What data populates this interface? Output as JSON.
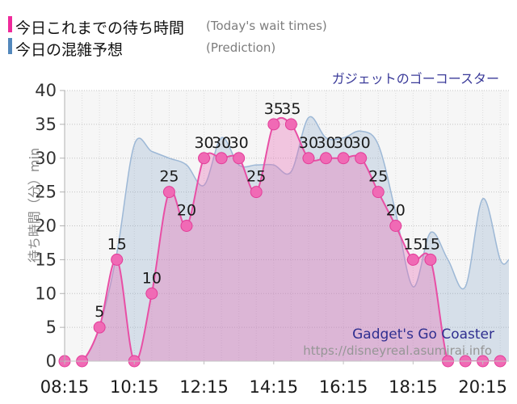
{
  "title": "ガジェットのゴーコースター",
  "legend": {
    "items": [
      {
        "label": "今日これまでの待ち時間",
        "sublabel": "(Today's wait times)",
        "color": "#ef2a9b"
      },
      {
        "label": "今日の混雑予想",
        "sublabel": "(Prediction)",
        "color": "#5388bc"
      }
    ]
  },
  "watermark": {
    "name": "Gadget's Go Coaster",
    "url": "https://disneyreal.asumirai.info"
  },
  "chart_data": {
    "type": "area",
    "title": "ガジェットのゴーコースター",
    "ylabel": "待ち時間（分）min",
    "ylim": [
      0,
      40
    ],
    "yticks": [
      0,
      5,
      10,
      15,
      20,
      25,
      30,
      35,
      40
    ],
    "xtick_labels": [
      "08:15",
      "10:15",
      "12:15",
      "14:15",
      "16:15",
      "18:15",
      "20:15"
    ],
    "x_range": [
      "08:15",
      "21:00"
    ],
    "grid": true,
    "legend_position": "top-left",
    "series": [
      {
        "name": "今日これまでの待ち時間",
        "line_color": "#e84fa5",
        "fill_color": "rgba(232,106,180,0.35)",
        "marker_fill": "#f06ab5",
        "marker_stroke": "#e23c98",
        "show_point_labels": true,
        "times": [
          "08:15",
          "08:45",
          "09:15",
          "09:45",
          "10:15",
          "10:45",
          "11:15",
          "11:45",
          "12:15",
          "12:45",
          "13:15",
          "13:45",
          "14:15",
          "14:45",
          "15:15",
          "15:45",
          "16:15",
          "16:45",
          "17:15",
          "17:45",
          "18:15",
          "18:45",
          "19:15",
          "19:45",
          "20:15",
          "20:45"
        ],
        "values": [
          0,
          0,
          5,
          15,
          0,
          10,
          25,
          20,
          30,
          30,
          30,
          25,
          35,
          35,
          30,
          30,
          30,
          30,
          25,
          20,
          15,
          15,
          0,
          0,
          0,
          0
        ]
      },
      {
        "name": "今日の混雑予想",
        "line_color": "#9db8d6",
        "fill_color": "rgba(120,155,195,0.25)",
        "show_point_labels": false,
        "times": [
          "08:15",
          "08:45",
          "09:15",
          "09:45",
          "10:15",
          "10:45",
          "11:15",
          "11:45",
          "12:15",
          "12:45",
          "13:15",
          "13:45",
          "14:15",
          "14:45",
          "15:15",
          "15:45",
          "16:15",
          "16:45",
          "17:15",
          "17:45",
          "18:15",
          "18:45",
          "19:15",
          "19:45",
          "20:15",
          "20:45",
          "21:00"
        ],
        "values": [
          0,
          0,
          5,
          16,
          32,
          31,
          30,
          29,
          26,
          33,
          29,
          29,
          29,
          28,
          36,
          33,
          33,
          34,
          32,
          22,
          11,
          19,
          15,
          11,
          24,
          15,
          15
        ]
      }
    ]
  }
}
